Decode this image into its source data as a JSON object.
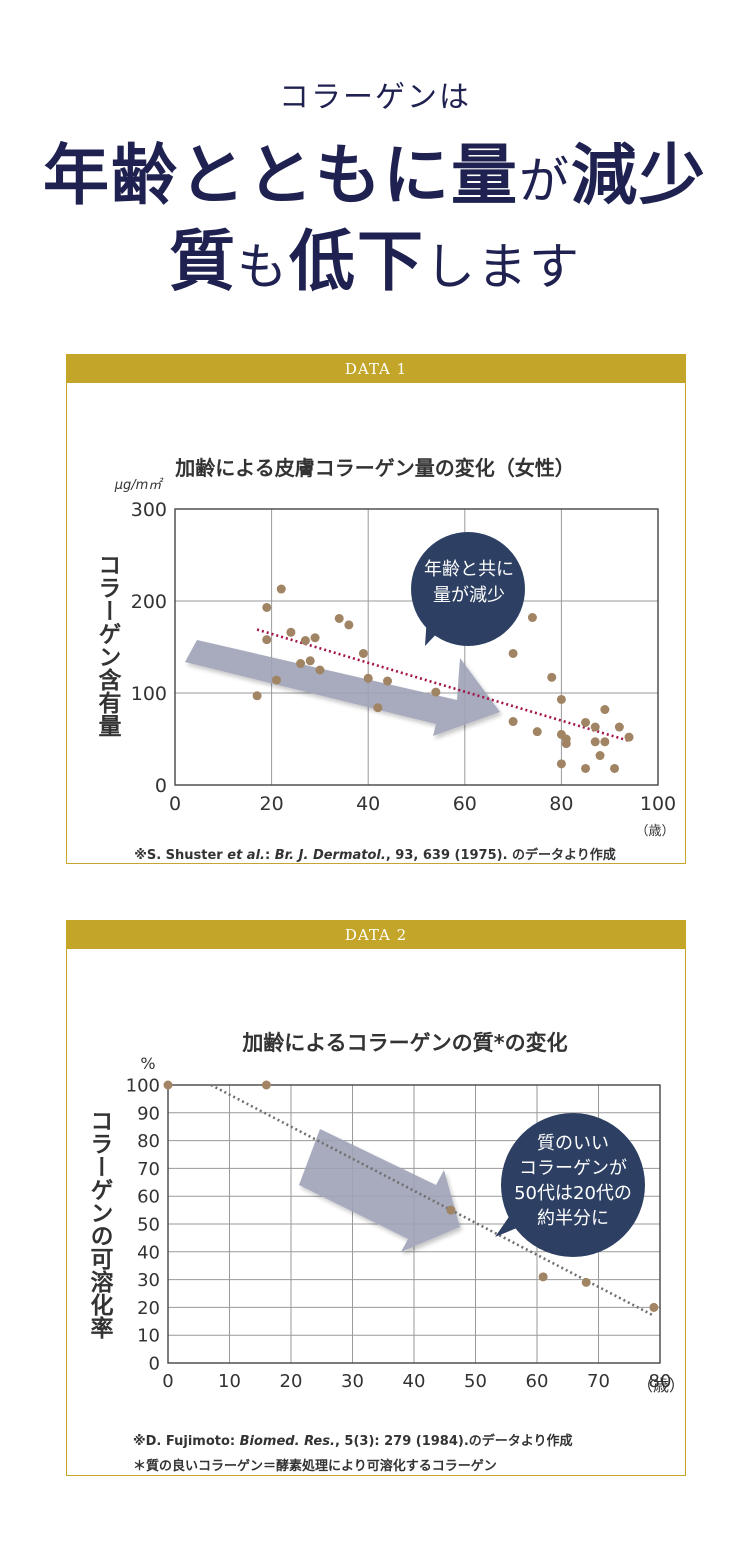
{
  "headline": {
    "sub": "コラーゲンは",
    "line1_a": "年齢とともに量",
    "line1_b": "が",
    "line1_c": "減少",
    "line2_a": "質",
    "line2_b": "も",
    "line2_c": "低下",
    "line2_d": "します"
  },
  "panels": [
    {
      "bar_label": "DATA 1",
      "citation_pre": "※S. Shuster ",
      "citation_etal": "et al.",
      "citation_colon": ": ",
      "citation_journal": "Br. J. Dermatol.",
      "citation_comma": ", ",
      "citation_vol": "93",
      "citation_rest": ", 639 (1975). のデータより作成"
    },
    {
      "bar_label": "DATA 2",
      "citation_pre": "※D. Fujimoto: ",
      "citation_journal": "Biomed. Res.",
      "citation_comma": ", ",
      "citation_vol": "5",
      "citation_rest": "(3): 279 (1984).のデータより作成",
      "note": "＊質の良いコラーゲン＝酵素処理により可溶化するコラーゲン"
    }
  ],
  "chart_data": [
    {
      "type": "scatter",
      "title": "加齢による皮膚コラーゲン量の変化（女性）",
      "unit_y": "μg/m㎡",
      "ylabel": "コラーゲン含有量",
      "xunit": "（歳）",
      "xlim": [
        0,
        100
      ],
      "ylim": [
        0,
        300
      ],
      "xticks": [
        "0",
        "20",
        "40",
        "60",
        "80",
        "100"
      ],
      "yticks": [
        "0",
        "100",
        "200",
        "300"
      ],
      "grid": true,
      "points": [
        {
          "x": 17,
          "y": 97
        },
        {
          "x": 19,
          "y": 158
        },
        {
          "x": 19,
          "y": 193
        },
        {
          "x": 21,
          "y": 114
        },
        {
          "x": 22,
          "y": 213
        },
        {
          "x": 24,
          "y": 166
        },
        {
          "x": 26,
          "y": 132
        },
        {
          "x": 27,
          "y": 157
        },
        {
          "x": 28,
          "y": 135
        },
        {
          "x": 29,
          "y": 160
        },
        {
          "x": 30,
          "y": 125
        },
        {
          "x": 34,
          "y": 181
        },
        {
          "x": 36,
          "y": 174
        },
        {
          "x": 39,
          "y": 143
        },
        {
          "x": 40,
          "y": 116
        },
        {
          "x": 42,
          "y": 84
        },
        {
          "x": 44,
          "y": 113
        },
        {
          "x": 54,
          "y": 101
        },
        {
          "x": 70,
          "y": 143
        },
        {
          "x": 70,
          "y": 69
        },
        {
          "x": 74,
          "y": 182
        },
        {
          "x": 75,
          "y": 58
        },
        {
          "x": 78,
          "y": 117
        },
        {
          "x": 80,
          "y": 93
        },
        {
          "x": 80,
          "y": 55
        },
        {
          "x": 80,
          "y": 23
        },
        {
          "x": 81,
          "y": 50
        },
        {
          "x": 81,
          "y": 45
        },
        {
          "x": 85,
          "y": 68
        },
        {
          "x": 85,
          "y": 18
        },
        {
          "x": 87,
          "y": 63
        },
        {
          "x": 87,
          "y": 47
        },
        {
          "x": 88,
          "y": 32
        },
        {
          "x": 89,
          "y": 82
        },
        {
          "x": 89,
          "y": 47
        },
        {
          "x": 91,
          "y": 18
        },
        {
          "x": 92,
          "y": 63
        },
        {
          "x": 94,
          "y": 52
        }
      ],
      "trendline": {
        "x": [
          17,
          94
        ],
        "y": [
          169,
          48
        ]
      },
      "annotation": [
        "年齢と共に",
        "量が減少"
      ]
    },
    {
      "type": "scatter",
      "title": "加齢によるコラーゲンの質*の変化",
      "unit_y": "%",
      "ylabel": "コラーゲンの可溶化率",
      "xunit": "（歳）",
      "xlim": [
        0,
        80
      ],
      "ylim": [
        0,
        100
      ],
      "xticks": [
        "0",
        "10",
        "20",
        "30",
        "40",
        "50",
        "60",
        "70",
        "80"
      ],
      "yticks": [
        "0",
        "10",
        "20",
        "30",
        "40",
        "50",
        "60",
        "70",
        "80",
        "90",
        "100"
      ],
      "grid": true,
      "points": [
        {
          "x": 0,
          "y": 100
        },
        {
          "x": 16,
          "y": 100
        },
        {
          "x": 46,
          "y": 55
        },
        {
          "x": 61,
          "y": 31
        },
        {
          "x": 68,
          "y": 29
        },
        {
          "x": 79,
          "y": 20
        }
      ],
      "trendline": {
        "x": [
          7,
          79
        ],
        "y": [
          100,
          17
        ]
      },
      "annotation": [
        "質のいい",
        "コラーゲンが",
        "50代は20代の",
        "約半分に"
      ]
    }
  ],
  "colors": {
    "navy": "#1f2150",
    "gold": "#c3a629",
    "point": "#a08464",
    "trend1": "#a4144a",
    "trend2": "#707070",
    "arrow": "#9ea3b6",
    "bubble": "#2d4063"
  }
}
